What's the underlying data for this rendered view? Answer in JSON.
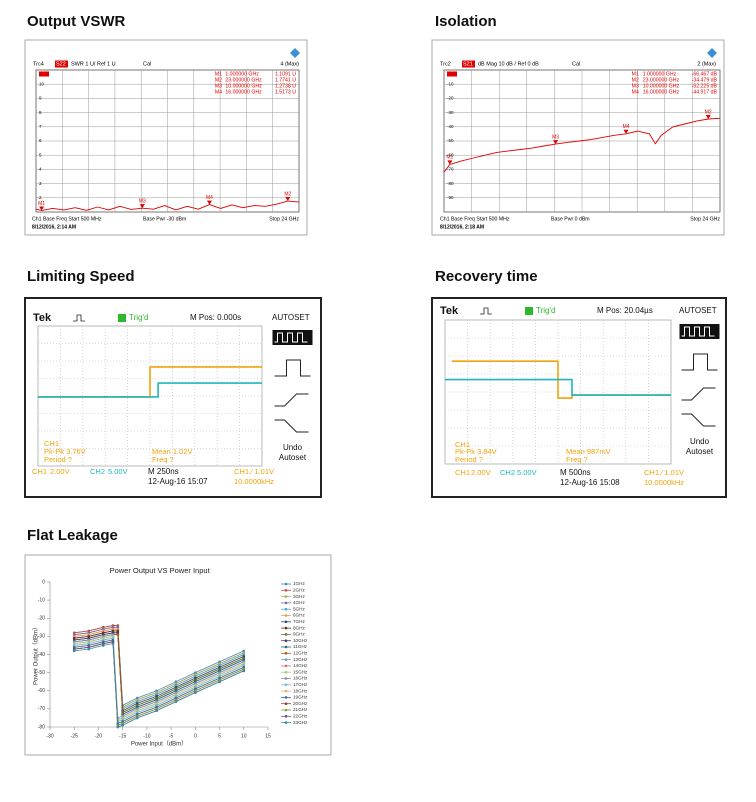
{
  "chart_data": [
    {
      "type": "line",
      "title": "Output VSWR",
      "header": [
        "Trc4",
        "S22",
        "SWR 1 U/ Ref 1 U",
        "Cal",
        "4 (Max)"
      ],
      "footer": [
        "Ch1  Base Freq  Start 500 MHz",
        "Base Pwr -30 dBm",
        "Stop 24 GHz",
        "8/12/2016, 2:14 AM"
      ],
      "x": [
        0.5,
        1,
        2,
        3,
        4,
        5,
        6,
        7,
        8,
        9,
        10,
        11,
        12,
        13,
        14,
        15,
        16,
        17,
        18,
        19,
        20,
        21,
        22,
        23,
        24
      ],
      "series": [
        {
          "color": "#e00000",
          "values": [
            1.2,
            1.11,
            1.25,
            1.15,
            1.3,
            1.12,
            1.35,
            1.15,
            1.4,
            1.18,
            1.27,
            1.2,
            1.45,
            1.15,
            1.4,
            1.2,
            1.52,
            1.25,
            1.5,
            1.3,
            1.45,
            1.4,
            1.55,
            1.77,
            1.7
          ]
        }
      ],
      "markers": {
        "names": [
          "M1",
          "M2",
          "M3",
          "M4"
        ],
        "x": [
          1,
          23,
          10,
          16
        ],
        "values": [
          1.1091,
          1.7741,
          1.2738,
          1.5173
        ],
        "x_labels": [
          "1.000000 GHz",
          "23.000000 GHz",
          "10.000000 GHz",
          "16.000000 GHz"
        ],
        "value_labels": [
          "1.1091 U",
          "1.7741 U",
          "1.2738 U",
          "1.5173 U"
        ]
      },
      "xlim": [
        0.5,
        24
      ],
      "ylim": [
        1,
        11
      ],
      "yticks": [
        2,
        3,
        4,
        5,
        6,
        7,
        8,
        9,
        10
      ],
      "grid": true
    },
    {
      "type": "line",
      "title": "Isolation",
      "header": [
        "Trc2",
        "S21",
        "dB Mag  10 dB / Ref 0 dB",
        "Cal",
        "2 (Max)"
      ],
      "footer": [
        "Ch1  Base Freq  Start 500 MHz",
        "Base Pwr  0 dBm",
        "Stop 24 GHz",
        "8/12/2016, 2:18 AM"
      ],
      "x": [
        0.5,
        1,
        2,
        3,
        4,
        5,
        6,
        7,
        8,
        9,
        10,
        11,
        12,
        13,
        14,
        15,
        16,
        17,
        18,
        18.5,
        19,
        20,
        21,
        22,
        23,
        24
      ],
      "series": [
        {
          "color": "#e00000",
          "values": [
            -72,
            -66.5,
            -64,
            -62,
            -60,
            -58,
            -57,
            -56,
            -55,
            -53.5,
            -52.2,
            -51,
            -50,
            -49,
            -47.5,
            -46,
            -44.9,
            -43,
            -45,
            -52,
            -46,
            -40,
            -38,
            -36,
            -34.5,
            -34
          ]
        }
      ],
      "markers": {
        "names": [
          "M1",
          "M2",
          "M3",
          "M4"
        ],
        "x": [
          1,
          23,
          10,
          16
        ],
        "values": [
          -66.467,
          -34.479,
          -52.225,
          -44.917
        ],
        "x_labels": [
          "1.000000 GHz",
          "23.000000 GHz",
          "10.000000 GHz",
          "16.000000 GHz"
        ],
        "value_labels": [
          "-66.467 dB",
          "-34.479 dB",
          "-52.225 dB",
          "-44.917 dB"
        ]
      },
      "xlim": [
        0.5,
        24
      ],
      "ylim": [
        -100,
        0
      ],
      "yticks": [
        -10,
        -20,
        -30,
        -40,
        -50,
        -60,
        -70,
        -80,
        -90
      ],
      "grid": true
    },
    {
      "type": "line",
      "title": "Limiting Speed",
      "header": [
        "Tek",
        "Trig'd",
        "M Pos: 0.000s",
        "AUTOSET"
      ],
      "buttons": [
        "Undo",
        "Autoset"
      ],
      "x": [
        -5,
        0,
        0,
        0.36,
        0.36,
        5
      ],
      "series": [
        {
          "name": "CH1",
          "color": "#f0a30a",
          "values": [
            -0.05,
            -0.05,
            1.66,
            1.66,
            1.66,
            1.66
          ]
        },
        {
          "name": "CH2",
          "color": "#1fb5c0",
          "values": [
            -0.05,
            -0.05,
            -0.05,
            -0.05,
            0.74,
            0.74
          ]
        }
      ],
      "measurements": [
        "CH1",
        "Pk-Pk 3.76V",
        "Period ?",
        "Mean 1.02V",
        "Freq ?"
      ],
      "scales": [
        "2.00V",
        "5.00V"
      ],
      "timebase": "M 250ns",
      "date": "12-Aug-16 15:07",
      "trigger": [
        "CH1 ⁄ 1.01V",
        "10.0000kHz"
      ],
      "xlim": [
        -5,
        5
      ],
      "ylim": [
        -4,
        4
      ]
    },
    {
      "type": "line",
      "title": "Recovery time",
      "header": [
        "Tek",
        "Trig'd",
        "M Pos: 20.04µs",
        "AUTOSET"
      ],
      "buttons": [
        "Undo",
        "Autoset"
      ],
      "x": [
        -5,
        -4.7,
        0,
        0,
        0.62,
        0.62,
        5
      ],
      "series": [
        {
          "name": "CH1",
          "color": "#f0a30a",
          "values": [
            null,
            1.71,
            1.71,
            -0.34,
            -0.34,
            -0.17,
            -0.17
          ]
        },
        {
          "name": "CH2",
          "color": "#1fb5c0",
          "values": [
            0.69,
            0.69,
            0.69,
            0.69,
            0.69,
            -0.17,
            -0.17
          ]
        }
      ],
      "measurements": [
        "CH1",
        "Pk-Pk 3.84V",
        "Period ?",
        "Mean 987mV",
        "Freq ?"
      ],
      "scales": [
        "2.00V",
        "5.00V"
      ],
      "timebase": "M 500ns",
      "date": "12-Aug-16 15:08",
      "trigger": [
        "CH1 ⁄ 1.01V",
        "10.0000kHz"
      ],
      "xlim": [
        -5,
        5
      ],
      "ylim": [
        -4,
        4
      ]
    },
    {
      "type": "line",
      "title": "Flat Leakage",
      "chart_title": "Power Output VS Power Input",
      "xlabel": "Power Input（dBm）",
      "ylabel": "Power Output（dBm）",
      "x": [
        -25,
        -22,
        -19,
        -17,
        -16,
        -15,
        -12,
        -8,
        -4,
        0,
        5,
        10
      ],
      "series": [
        {
          "name": "1GHz",
          "color": "#4f81bd",
          "values": [
            -28,
            -27,
            -25,
            -24,
            -24,
            -68,
            -64,
            -60,
            -55,
            -50,
            -44,
            -38
          ]
        },
        {
          "name": "2GHz",
          "color": "#c0504d",
          "values": [
            -28,
            -27,
            -25,
            -24,
            -24,
            -69,
            -65,
            -61,
            -56,
            -51,
            -45,
            -39
          ]
        },
        {
          "name": "3GHz",
          "color": "#9bbb59",
          "values": [
            -29,
            -28,
            -26,
            -25,
            -25,
            -69,
            -65,
            -61,
            -56,
            -51,
            -45,
            -39
          ]
        },
        {
          "name": "4GHz",
          "color": "#8064a2",
          "values": [
            -29,
            -28,
            -26,
            -25,
            -25,
            -70,
            -66,
            -62,
            -57,
            -52,
            -46,
            -40
          ]
        },
        {
          "name": "5GHz",
          "color": "#4bacc6",
          "values": [
            -30,
            -29,
            -27,
            -26,
            -26,
            -70,
            -66,
            -62,
            -57,
            -52,
            -46,
            -40
          ]
        },
        {
          "name": "6GHz",
          "color": "#f79646",
          "values": [
            -30,
            -29,
            -27,
            -26,
            -26,
            -71,
            -67,
            -63,
            -58,
            -53,
            -47,
            -41
          ]
        },
        {
          "name": "7GHz",
          "color": "#2c4d75",
          "values": [
            -31,
            -30,
            -28,
            -27,
            -27,
            -71,
            -67,
            -63,
            -58,
            -53,
            -47,
            -41
          ]
        },
        {
          "name": "8GHz",
          "color": "#772c2a",
          "values": [
            -31,
            -30,
            -28,
            -27,
            -27,
            -72,
            -68,
            -64,
            -59,
            -54,
            -48,
            -42
          ]
        },
        {
          "name": "9GHz",
          "color": "#5f7530",
          "values": [
            -32,
            -31,
            -29,
            -28,
            -28,
            -72,
            -68,
            -64,
            -59,
            -54,
            -48,
            -42
          ]
        },
        {
          "name": "10GHz",
          "color": "#4d3b62",
          "values": [
            -32,
            -31,
            -29,
            -28,
            -28,
            -73,
            -69,
            -65,
            -60,
            -55,
            -49,
            -43
          ]
        },
        {
          "name": "11GHz",
          "color": "#276a7c",
          "values": [
            -33,
            -32,
            -30,
            -29,
            -29,
            -73,
            -69,
            -65,
            -60,
            -55,
            -49,
            -43
          ]
        },
        {
          "name": "12GHz",
          "color": "#b65708",
          "values": [
            -33,
            -32,
            -30,
            -29,
            -29,
            -74,
            -70,
            -66,
            -61,
            -56,
            -50,
            -44
          ]
        },
        {
          "name": "13GHz",
          "color": "#729aca",
          "values": [
            -33,
            -32,
            -30,
            -29,
            -75,
            -74,
            -70,
            -66,
            -61,
            -56,
            -50,
            -44
          ]
        },
        {
          "name": "14GHz",
          "color": "#cd7371",
          "values": [
            -34,
            -33,
            -31,
            -30,
            -76,
            -75,
            -71,
            -67,
            -62,
            -57,
            -51,
            -45
          ]
        },
        {
          "name": "15GHz",
          "color": "#afc97a",
          "values": [
            -34,
            -33,
            -31,
            -30,
            -76,
            -75,
            -71,
            -67,
            -62,
            -57,
            -51,
            -45
          ]
        },
        {
          "name": "16GHz",
          "color": "#9983b5",
          "values": [
            -35,
            -34,
            -32,
            -31,
            -77,
            -76,
            -72,
            -68,
            -63,
            -58,
            -52,
            -46
          ]
        },
        {
          "name": "17GHz",
          "color": "#6fbdd1",
          "values": [
            -35,
            -34,
            -32,
            -31,
            -77,
            -76,
            -72,
            -68,
            -63,
            -58,
            -52,
            -46
          ]
        },
        {
          "name": "18GHz",
          "color": "#f9ab6b",
          "values": [
            -36,
            -35,
            -33,
            -32,
            -78,
            -77,
            -73,
            -69,
            -64,
            -59,
            -53,
            -47
          ]
        },
        {
          "name": "19GHz",
          "color": "#3a679c",
          "values": [
            -36,
            -35,
            -33,
            -32,
            -78,
            -77,
            -73,
            -69,
            -64,
            -59,
            -53,
            -47
          ]
        },
        {
          "name": "20GHz",
          "color": "#9f3b38",
          "values": [
            -37,
            -36,
            -34,
            -33,
            -79,
            -78,
            -74,
            -70,
            -65,
            -60,
            -54,
            -48
          ]
        },
        {
          "name": "21GHz",
          "color": "#7f9c40",
          "values": [
            -37,
            -36,
            -34,
            -33,
            -79,
            -78,
            -74,
            -70,
            -65,
            -60,
            -54,
            -48
          ]
        },
        {
          "name": "22GHz",
          "color": "#664f83",
          "values": [
            -37,
            -36,
            -34,
            -33,
            -80,
            -79,
            -75,
            -71,
            -66,
            -61,
            -55,
            -49
          ]
        },
        {
          "name": "23GHz",
          "color": "#358ea6",
          "values": [
            -38,
            -37,
            -35,
            -34,
            -80,
            -79,
            -75,
            -71,
            -66,
            -61,
            -55,
            -49
          ]
        }
      ],
      "xlim": [
        -30,
        15
      ],
      "xticks": [
        -30,
        -25,
        -20,
        -15,
        -10,
        -5,
        0,
        5,
        10,
        15
      ],
      "ylim": [
        -80,
        0
      ],
      "yticks": [
        0,
        -10,
        -20,
        -30,
        -40,
        -50,
        -60,
        -70,
        -80
      ],
      "legend": "right"
    }
  ]
}
